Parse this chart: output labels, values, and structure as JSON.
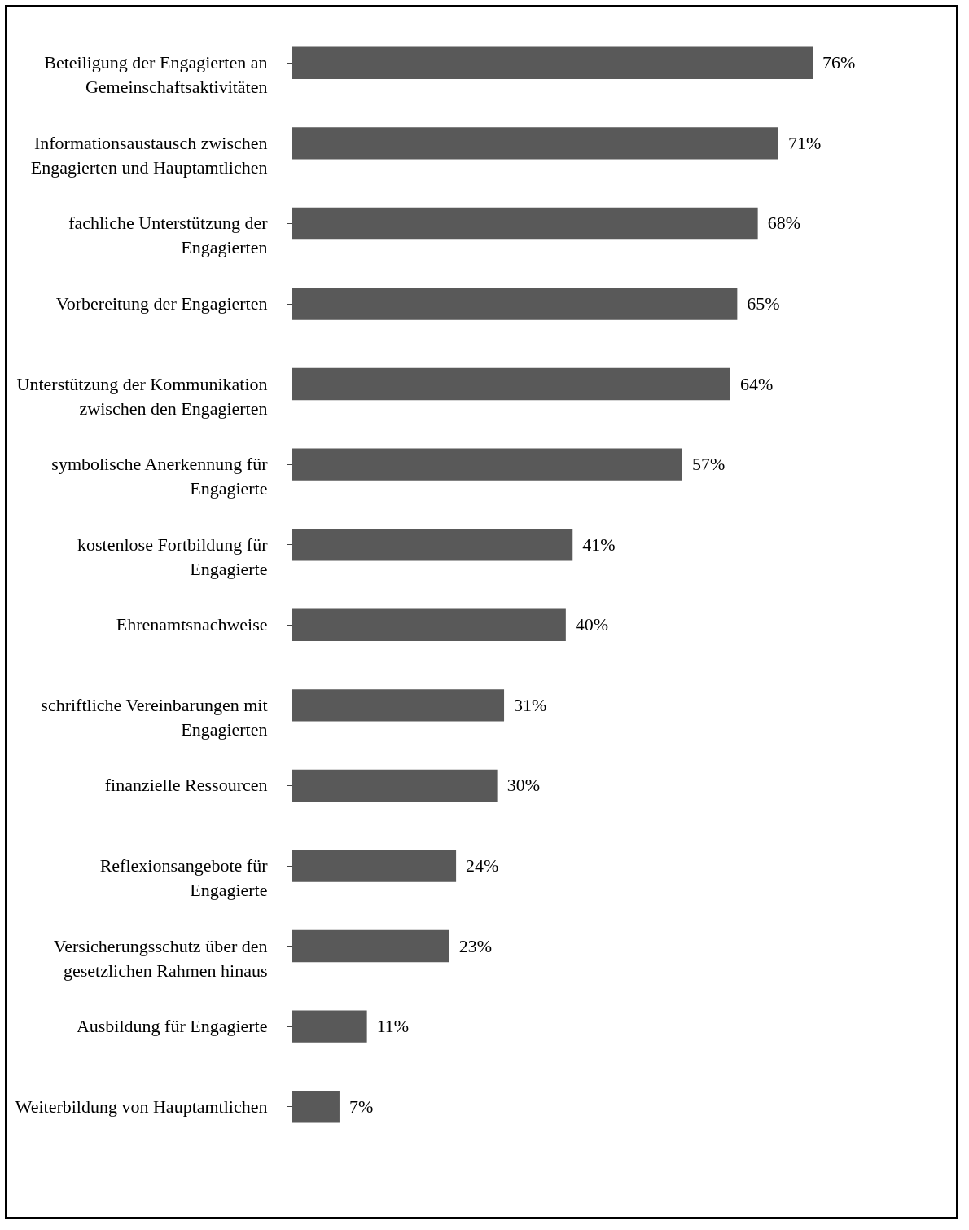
{
  "chart_data": {
    "type": "bar",
    "orientation": "horizontal",
    "categories": [
      "Beteiligung der Engagierten an Gemeinschaftsaktivitäten",
      "Informationsaustausch zwischen Engagierten und Hauptamtlichen",
      "fachliche Unterstützung der Engagierten",
      "Vorbereitung der Engagierten",
      "Unterstützung der Kommunikation zwischen den Engagierten",
      "symbolische Anerkennung für Engagierte",
      "kostenlose Fortbildung für Engagierte",
      "Ehrenamtsnachweise",
      "schriftliche Vereinbarungen mit Engagierten",
      "finanzielle Ressourcen",
      "Reflexionsangebote für Engagierte",
      "Versicherungsschutz über den gesetzlichen Rahmen hinaus",
      "Ausbildung für Engagierte",
      "Weiterbildung von Hauptamtlichen"
    ],
    "values": [
      76,
      71,
      68,
      65,
      64,
      57,
      41,
      40,
      31,
      30,
      24,
      23,
      11,
      7
    ],
    "value_labels": [
      "76%",
      "71%",
      "68%",
      "65%",
      "64%",
      "57%",
      "41%",
      "40%",
      "31%",
      "30%",
      "24%",
      "23%",
      "11%",
      "7%"
    ],
    "color": "#595959"
  }
}
